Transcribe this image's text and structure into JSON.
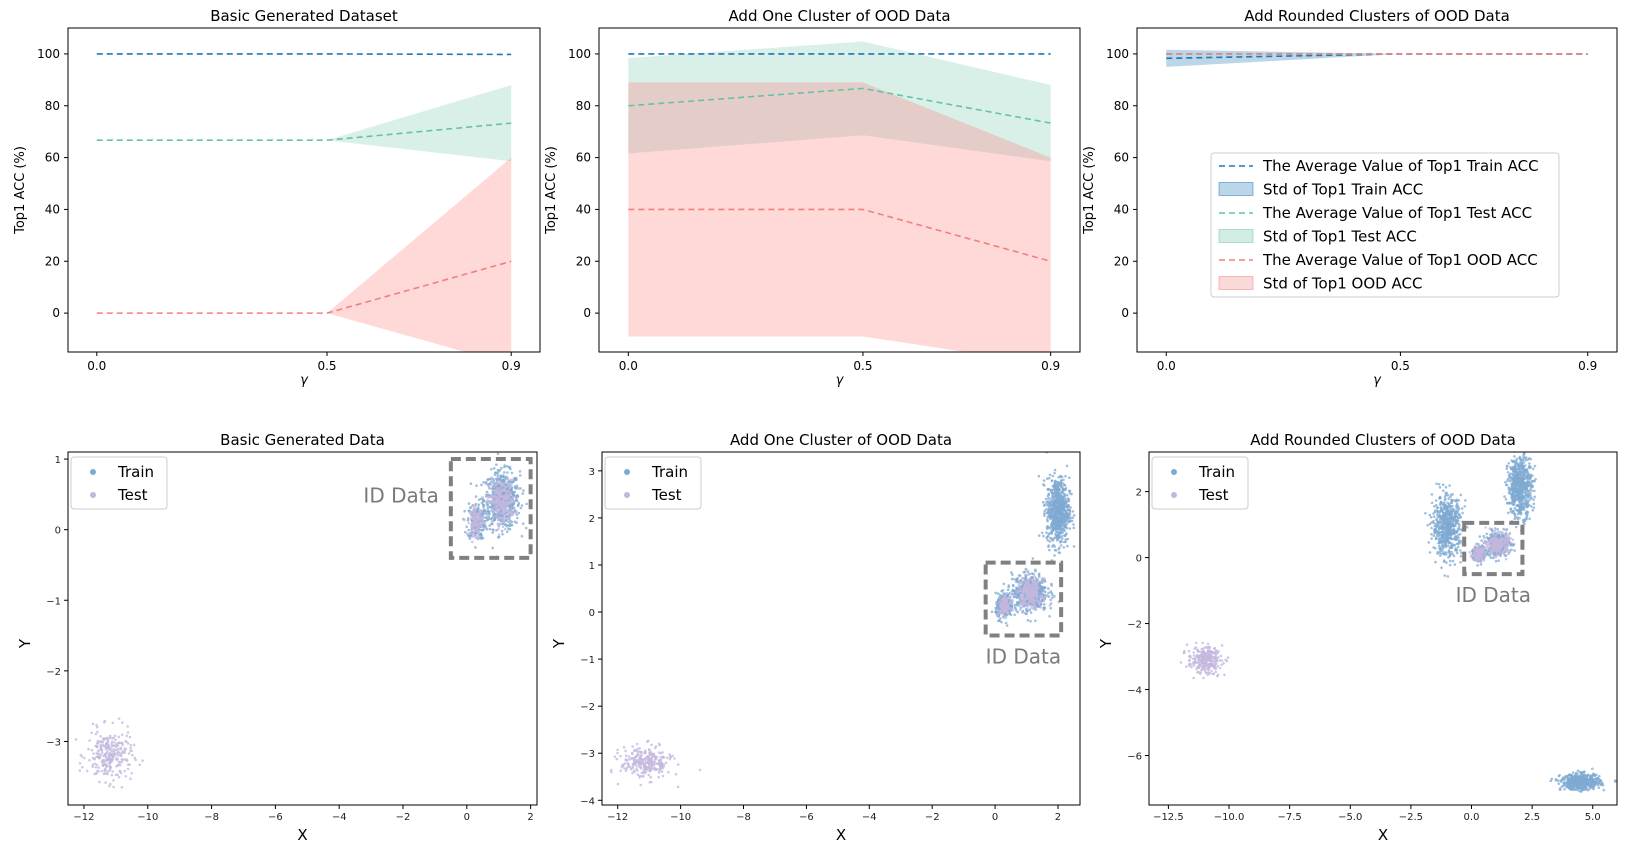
{
  "chart_data": [
    {
      "type": "line",
      "title": "Basic Generated Dataset",
      "xlabel": "γ",
      "ylabel": "Top1 ACC (%)",
      "x": [
        0.0,
        0.5,
        0.9
      ],
      "xticks": [
        "0.0",
        "0.5",
        "0.9"
      ],
      "yticks": [
        0,
        20,
        40,
        60,
        80,
        100
      ],
      "ylim": [
        -15,
        110
      ],
      "grid": false,
      "series": [
        {
          "name": "The Average Value of Top1 Train ACC",
          "values": [
            100,
            100,
            99.8
          ],
          "std_lower": [
            100,
            100,
            99.8
          ],
          "std_upper": [
            100,
            100,
            99.8
          ]
        },
        {
          "name": "The Average Value of Top1 Test ACC",
          "values": [
            66.7,
            66.7,
            73.3
          ],
          "std_lower": [
            66.7,
            66.7,
            58.6
          ],
          "std_upper": [
            66.7,
            66.7,
            88.0
          ]
        },
        {
          "name": "The Average Value of Top1 OOD ACC",
          "values": [
            0,
            0,
            20
          ],
          "std_lower": [
            0,
            0,
            -20
          ],
          "std_upper": [
            0,
            0,
            60
          ]
        }
      ]
    },
    {
      "type": "line",
      "title": "Add One Cluster of OOD Data",
      "xlabel": "γ",
      "ylabel": "Top1 ACC (%)",
      "x": [
        0.0,
        0.5,
        0.9
      ],
      "xticks": [
        "0.0",
        "0.5",
        "0.9"
      ],
      "yticks": [
        0,
        20,
        40,
        60,
        80,
        100
      ],
      "ylim": [
        -15,
        110
      ],
      "grid": false,
      "series": [
        {
          "name": "The Average Value of Top1 Train ACC",
          "values": [
            100,
            100,
            100
          ],
          "std_lower": [
            100,
            100,
            100
          ],
          "std_upper": [
            100,
            100,
            100
          ]
        },
        {
          "name": "The Average Value of Top1 Test ACC",
          "values": [
            80,
            86.7,
            73.3
          ],
          "std_lower": [
            61.6,
            68.6,
            58.6
          ],
          "std_upper": [
            98.4,
            104.8,
            88.0
          ]
        },
        {
          "name": "The Average Value of Top1 OOD ACC",
          "values": [
            40,
            40,
            20
          ],
          "std_lower": [
            -9,
            -9,
            -20
          ],
          "std_upper": [
            89,
            89,
            60
          ]
        }
      ]
    },
    {
      "type": "line",
      "title": "Add Rounded Clusters of OOD Data",
      "xlabel": "γ",
      "ylabel": "Top1 ACC (%)",
      "x": [
        0.0,
        0.5,
        0.9
      ],
      "xticks": [
        "0.0",
        "0.5",
        "0.9"
      ],
      "yticks": [
        0,
        20,
        40,
        60,
        80,
        100
      ],
      "ylim": [
        -15,
        110
      ],
      "grid": false,
      "legend_position": "center-right",
      "legend": [
        {
          "label": "The Average Value of Top1 Train ACC",
          "kind": "line",
          "color": "#1f77b4"
        },
        {
          "label": "Std of Top1 Train ACC",
          "kind": "patch",
          "color": "#1f77b4"
        },
        {
          "label": "The Average Value of Top1 Test ACC",
          "kind": "line",
          "color": "#66c2a5"
        },
        {
          "label": "Std of Top1 Test ACC",
          "kind": "patch",
          "color": "#66c2a5"
        },
        {
          "label": "The Average Value of Top1 OOD ACC",
          "kind": "line",
          "color": "#f08080"
        },
        {
          "label": "Std of Top1 OOD ACC",
          "kind": "patch",
          "color": "#f08080"
        }
      ],
      "series": [
        {
          "name": "The Average Value of Top1 Train ACC",
          "values": [
            98.3,
            100,
            100
          ],
          "std_lower": [
            95.0,
            100,
            100
          ],
          "std_upper": [
            101.6,
            100,
            100
          ]
        },
        {
          "name": "The Average Value of Top1 Test ACC",
          "values": [
            100,
            100,
            100
          ],
          "std_lower": [
            100,
            100,
            100
          ],
          "std_upper": [
            100,
            100,
            100
          ]
        },
        {
          "name": "The Average Value of Top1 OOD ACC",
          "values": [
            100,
            100,
            100
          ],
          "std_lower": [
            100,
            100,
            100
          ],
          "std_upper": [
            100,
            100,
            100
          ]
        }
      ]
    },
    {
      "type": "scatter",
      "title": "Basic Generated Data",
      "xlabel": "X",
      "ylabel": "Y",
      "xlim": [
        -12.5,
        2.2
      ],
      "ylim": [
        -3.9,
        1.1
      ],
      "xticks": [
        -12,
        -10,
        -8,
        -6,
        -4,
        -2,
        0,
        2
      ],
      "yticks": [
        1,
        0,
        -1,
        -2,
        -3
      ],
      "legend_position": "top-left",
      "legend": [
        "Train",
        "Test"
      ],
      "annotation": {
        "text": "ID Data",
        "box": {
          "x0": -0.5,
          "x1": 2.0,
          "y0": -0.4,
          "y1": 1.0
        }
      },
      "clusters": [
        {
          "series": "Train",
          "cx": 1.1,
          "cy": 0.42,
          "sx": 0.28,
          "sy": 0.2,
          "n": 600
        },
        {
          "series": "Train",
          "cx": 0.3,
          "cy": 0.12,
          "sx": 0.14,
          "sy": 0.13,
          "n": 200
        },
        {
          "series": "Test",
          "cx": 1.1,
          "cy": 0.4,
          "sx": 0.2,
          "sy": 0.15,
          "n": 260
        },
        {
          "series": "Test",
          "cx": 0.3,
          "cy": 0.12,
          "sx": 0.1,
          "sy": 0.1,
          "n": 120
        },
        {
          "series": "Test",
          "cx": -11.2,
          "cy": -3.2,
          "sx": 0.35,
          "sy": 0.18,
          "n": 260
        }
      ]
    },
    {
      "type": "scatter",
      "title": "Add One Cluster of OOD Data",
      "xlabel": "X",
      "ylabel": "Y",
      "xlim": [
        -12.5,
        2.7
      ],
      "ylim": [
        -4.1,
        3.4
      ],
      "xticks": [
        -12,
        -10,
        -8,
        -6,
        -4,
        -2,
        0,
        2
      ],
      "yticks": [
        3,
        2,
        1,
        0,
        -1,
        -2,
        -3,
        -4
      ],
      "legend_position": "top-left",
      "legend": [
        "Train",
        "Test"
      ],
      "annotation": {
        "text": "ID Data",
        "box": {
          "x0": -0.3,
          "x1": 2.1,
          "y0": -0.5,
          "y1": 1.05
        }
      },
      "clusters": [
        {
          "series": "Train",
          "cx": 2.0,
          "cy": 2.15,
          "sx": 0.18,
          "sy": 0.35,
          "n": 700
        },
        {
          "series": "Train",
          "cx": 1.1,
          "cy": 0.42,
          "sx": 0.28,
          "sy": 0.2,
          "n": 500
        },
        {
          "series": "Train",
          "cx": 0.3,
          "cy": 0.12,
          "sx": 0.14,
          "sy": 0.13,
          "n": 200
        },
        {
          "series": "Test",
          "cx": 1.1,
          "cy": 0.4,
          "sx": 0.2,
          "sy": 0.15,
          "n": 240
        },
        {
          "series": "Test",
          "cx": 0.3,
          "cy": 0.12,
          "sx": 0.1,
          "sy": 0.1,
          "n": 120
        },
        {
          "series": "Test",
          "cx": -11.1,
          "cy": -3.2,
          "sx": 0.4,
          "sy": 0.17,
          "n": 260
        }
      ]
    },
    {
      "type": "scatter",
      "title": "Add Rounded Clusters of OOD Data",
      "xlabel": "X",
      "ylabel": "Y",
      "xlim": [
        -13.3,
        6.0
      ],
      "ylim": [
        -7.5,
        3.2
      ],
      "xticks": [
        "-12.5",
        "-10.0",
        "-7.5",
        "-5.0",
        "-2.5",
        "0.0",
        "2.5",
        "5.0"
      ],
      "xtick_values": [
        -12.5,
        -10,
        -7.5,
        -5,
        -2.5,
        0,
        2.5,
        5
      ],
      "yticks": [
        2,
        0,
        -2,
        -4,
        -6
      ],
      "legend_position": "top-left",
      "legend": [
        "Train",
        "Test"
      ],
      "annotation": {
        "text": "ID Data",
        "box": {
          "x0": -0.3,
          "x1": 2.1,
          "y0": -0.5,
          "y1": 1.05
        }
      },
      "clusters": [
        {
          "series": "Train",
          "cx": 2.0,
          "cy": 2.15,
          "sx": 0.25,
          "sy": 0.45,
          "n": 600
        },
        {
          "series": "Train",
          "cx": -1.0,
          "cy": 0.95,
          "sx": 0.3,
          "sy": 0.45,
          "n": 600
        },
        {
          "series": "Train",
          "cx": 4.5,
          "cy": -6.8,
          "sx": 0.4,
          "sy": 0.12,
          "n": 500
        },
        {
          "series": "Train",
          "cx": 1.1,
          "cy": 0.42,
          "sx": 0.25,
          "sy": 0.18,
          "n": 300
        },
        {
          "series": "Train",
          "cx": 0.3,
          "cy": 0.12,
          "sx": 0.14,
          "sy": 0.13,
          "n": 150
        },
        {
          "series": "Test",
          "cx": 1.1,
          "cy": 0.4,
          "sx": 0.22,
          "sy": 0.16,
          "n": 220
        },
        {
          "series": "Test",
          "cx": 0.3,
          "cy": 0.12,
          "sx": 0.12,
          "sy": 0.11,
          "n": 110
        },
        {
          "series": "Test",
          "cx": -11.0,
          "cy": -3.1,
          "sx": 0.35,
          "sy": 0.2,
          "n": 260
        }
      ]
    }
  ],
  "colors": {
    "train_line": "#1f77b4",
    "test_line": "#66c2a5",
    "ood_line": "#f08080",
    "train_fill": "#1f77b4",
    "test_fill": "#66c2a5",
    "ood_fill": "#ff7f7f",
    "scatter_train": "#7fa9d1",
    "scatter_test": "#c3b7dd",
    "annot_box": "#808080"
  }
}
